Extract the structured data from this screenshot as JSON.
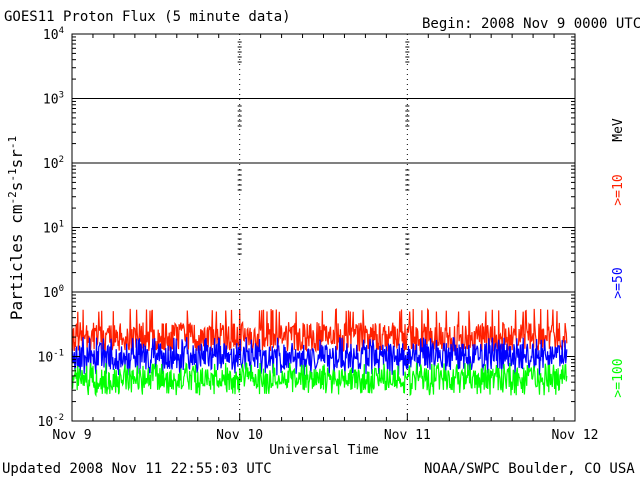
{
  "header": {
    "title": "GOES11 Proton Flux (5 minute data)",
    "begin": "Begin: 2008 Nov 9 0000 UTC"
  },
  "footer": {
    "updated": "Updated 2008 Nov 11 22:55:03 UTC",
    "source": "NOAA/SWPC Boulder, CO USA"
  },
  "colors": {
    "ge10": "#ff2000",
    "ge50": "#0000ff",
    "ge100": "#00ff00",
    "axis": "#000000"
  },
  "chart_data": {
    "type": "line",
    "title": "GOES11 Proton Flux (5 minute data)",
    "xlabel": "Universal Time",
    "ylabel_base": "Particles cm",
    "ylabel_sup1": "-2",
    "ylabel_mid1": "s",
    "ylabel_sup2": "-1",
    "ylabel_mid2": "sr",
    "ylabel_sup3": "-1",
    "yscale": "log",
    "ylim": [
      0.01,
      10000
    ],
    "xlim": [
      "2008-11-09 00:00",
      "2008-11-12 00:00"
    ],
    "xticks": [
      "Nov 9",
      "Nov 10",
      "Nov 11",
      "Nov 12"
    ],
    "yticks": [
      {
        "base": "10",
        "exp": "-2"
      },
      {
        "base": "10",
        "exp": "-1"
      },
      {
        "base": "10",
        "exp": "0"
      },
      {
        "base": "10",
        "exp": "1"
      },
      {
        "base": "10",
        "exp": "2"
      },
      {
        "base": "10",
        "exp": "3"
      },
      {
        "base": "10",
        "exp": "4"
      }
    ],
    "threshold_lines": [
      {
        "value": 1,
        "style": "solid"
      },
      {
        "value": 10,
        "style": "dashed"
      },
      {
        "value": 100,
        "style": "solid"
      },
      {
        "value": 1000,
        "style": "solid"
      }
    ],
    "legend_unit": "MeV",
    "series": [
      {
        "name": ">=10",
        "color": "#ff2000",
        "typical": 0.2,
        "range": [
          0.12,
          0.55
        ]
      },
      {
        "name": ">=50",
        "color": "#0000ff",
        "typical": 0.1,
        "range": [
          0.05,
          0.2
        ]
      },
      {
        "name": ">=100",
        "color": "#00ff00",
        "typical": 0.045,
        "range": [
          0.025,
          0.08
        ]
      }
    ],
    "end_point": "2008-11-11 22:55"
  }
}
